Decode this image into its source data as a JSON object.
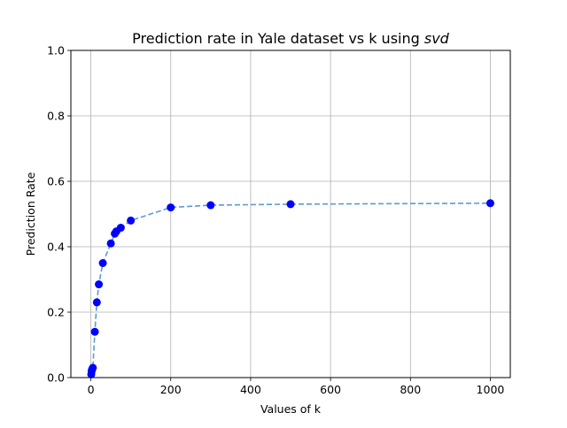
{
  "chart_data": {
    "type": "line",
    "title_main": "Prediction rate in Yale dataset vs k using ",
    "title_italic": "svd",
    "xlabel": "Values of k",
    "ylabel": "Prediction Rate",
    "xlim": [
      -50,
      1050
    ],
    "ylim": [
      0.0,
      1.0
    ],
    "xticks": [
      0,
      200,
      400,
      600,
      800,
      1000
    ],
    "yticks": [
      0.0,
      0.2,
      0.4,
      0.6,
      0.8,
      1.0
    ],
    "xtick_labels": [
      "0",
      "200",
      "400",
      "600",
      "800",
      "1000"
    ],
    "ytick_labels": [
      "0.0",
      "0.2",
      "0.4",
      "0.6",
      "0.8",
      "1.0"
    ],
    "grid": true,
    "line_color": "#5b9bd5",
    "line_style": "dashed",
    "marker_color": "#0000ff",
    "series": [
      {
        "x": [
          1,
          2,
          3,
          5,
          10,
          15,
          20,
          30,
          50,
          60,
          64,
          75,
          100,
          200,
          300,
          500,
          1000
        ],
        "y": [
          0.01,
          0.02,
          0.025,
          0.03,
          0.14,
          0.23,
          0.285,
          0.35,
          0.41,
          0.44,
          0.447,
          0.458,
          0.48,
          0.52,
          0.527,
          0.53,
          0.533
        ]
      }
    ]
  }
}
